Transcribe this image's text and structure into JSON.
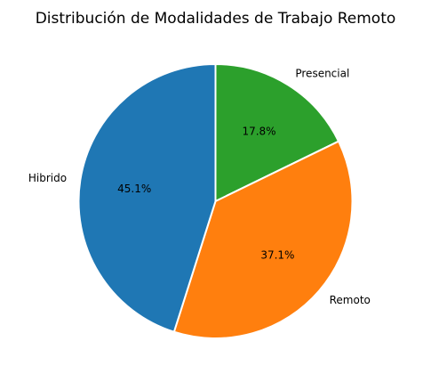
{
  "chart_data": {
    "type": "pie",
    "title": "Distribución de Modalidades de Trabajo Remoto",
    "start_angle_deg": 90,
    "direction": "clockwise",
    "slices": [
      {
        "label": "Presencial",
        "value": 17.8,
        "pct_label": "17.8%",
        "color": "#2ca02c"
      },
      {
        "label": "Remoto",
        "value": 37.1,
        "pct_label": "37.1%",
        "color": "#ff7f0e"
      },
      {
        "label": "Hibrido",
        "value": 45.1,
        "pct_label": "45.1%",
        "color": "#1f77b4"
      }
    ],
    "edge_color": "#ffffff",
    "legend": "none"
  }
}
